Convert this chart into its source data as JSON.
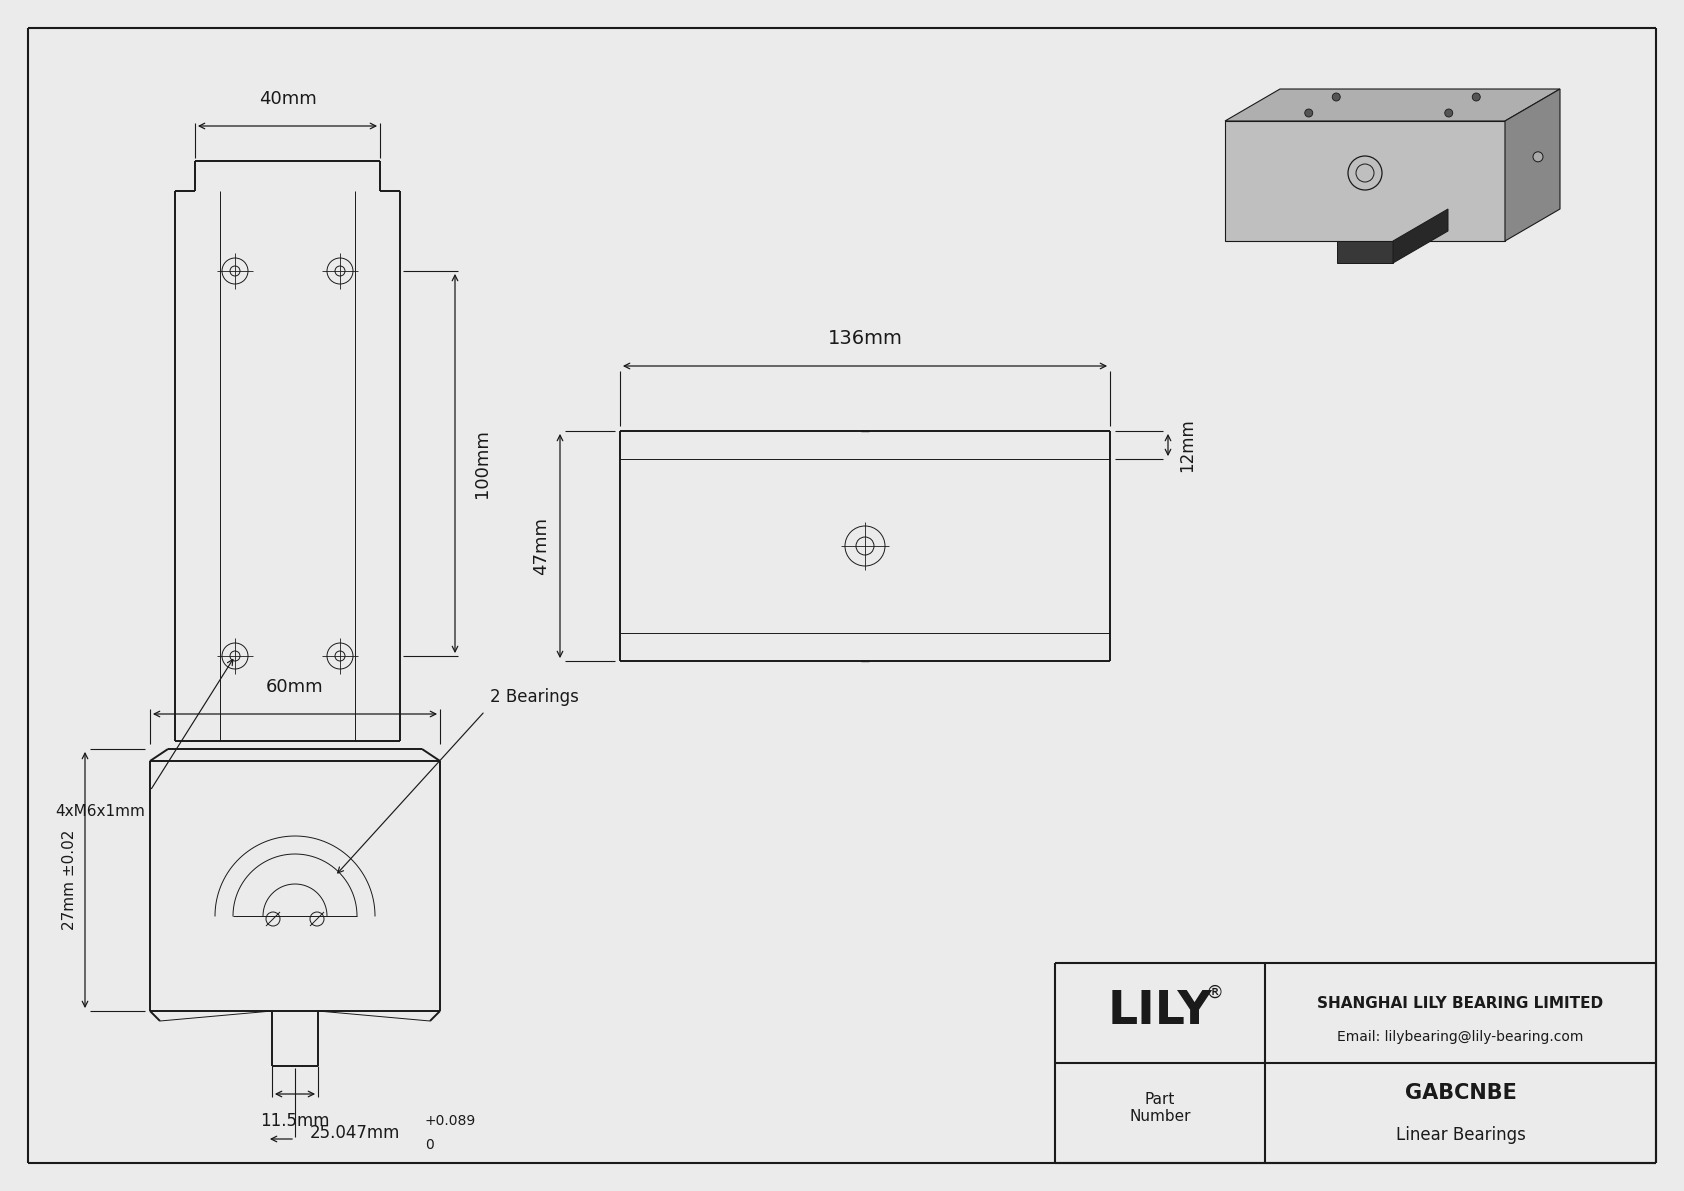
{
  "bg_color": "#ebebeb",
  "line_color": "#1a1a1a",
  "border_color": "#1a1a1a",
  "dim_40mm": "40mm",
  "dim_100mm": "100mm",
  "dim_60mm": "60mm",
  "dim_27mm": "27mm ±0.02",
  "dim_136mm": "136mm",
  "dim_47mm": "47mm",
  "dim_12mm": "12mm",
  "dim_11_5mm": "11.5mm",
  "dim_25mm": "25.047mm",
  "annotation_4xm6": "4xM6x1mm",
  "annotation_2bearings": "2 Bearings",
  "company": "SHANGHAI LILY BEARING LIMITED",
  "email": "Email: lilybearing@lily-bearing.com",
  "logo_text": "LILY",
  "logo_reg": "®",
  "part_label": "Part\nNumber",
  "part_number": "GABCNBE",
  "part_type": "Linear Bearings",
  "tol_plus": "+0.089",
  "tol_zero": "0"
}
